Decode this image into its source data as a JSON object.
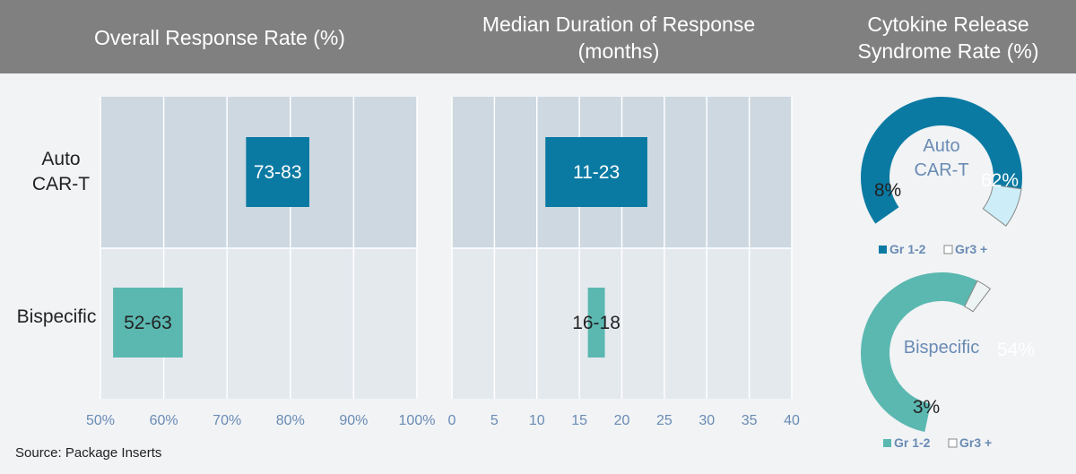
{
  "header": {
    "col1": "Overall Response Rate (%)",
    "col2_line1": "Median Duration of Response",
    "col2_line2": "(months)",
    "col3_line1": "Cytokine Release",
    "col3_line2": "Syndrome Rate (%)"
  },
  "source": "Source: Package Inserts",
  "colors": {
    "auto": "#0b7aa3",
    "bispecific": "#5bb8b0",
    "auto_light": "#cdeef8",
    "bi_light": "#eef4f4",
    "band_top": "#cdd8e1",
    "band_bottom": "#e4e9ee",
    "axis_text": "#6a8bb4"
  },
  "chart_data": [
    {
      "type": "bar",
      "title": "Overall Response Rate (%)",
      "categories": [
        "Auto CAR-T",
        "Bispecific"
      ],
      "category_lines": [
        [
          "Auto",
          "CAR-T"
        ],
        [
          "Bispecific"
        ]
      ],
      "ranges": [
        [
          73,
          83
        ],
        [
          52,
          63
        ]
      ],
      "labels": [
        "73-83",
        "52-63"
      ],
      "xlim": [
        50,
        100
      ],
      "ticks": [
        "50%",
        "60%",
        "70%",
        "80%",
        "90%",
        "100%"
      ],
      "grid": true
    },
    {
      "type": "bar",
      "title": "Median Duration of Response (months)",
      "categories": [
        "Auto CAR-T",
        "Bispecific"
      ],
      "ranges": [
        [
          11,
          23
        ],
        [
          16,
          18
        ]
      ],
      "labels": [
        "11-23",
        "16-18"
      ],
      "xlim": [
        0,
        40
      ],
      "ticks": [
        "0",
        "5",
        "10",
        "15",
        "20",
        "25",
        "30",
        "35",
        "40"
      ],
      "grid": true
    },
    {
      "type": "pie",
      "title": "Cytokine Release Syndrome Rate (%)",
      "donuts": [
        {
          "center_label": [
            "Auto",
            "CAR-T"
          ],
          "slices": [
            {
              "name": "Gr 1-2",
              "value": 62,
              "label": "62%"
            },
            {
              "name": "Gr3 +",
              "value": 8,
              "label": "8%"
            }
          ],
          "legend": [
            "Gr 1-2",
            "Gr3 +"
          ]
        },
        {
          "center_label": [
            "Bispecific"
          ],
          "slices": [
            {
              "name": "Gr 1-2",
              "value": 54,
              "label": "54%"
            },
            {
              "name": "Gr3 +",
              "value": 3,
              "label": "3%"
            }
          ],
          "legend": [
            "Gr 1-2",
            "Gr3 +"
          ]
        }
      ]
    }
  ]
}
